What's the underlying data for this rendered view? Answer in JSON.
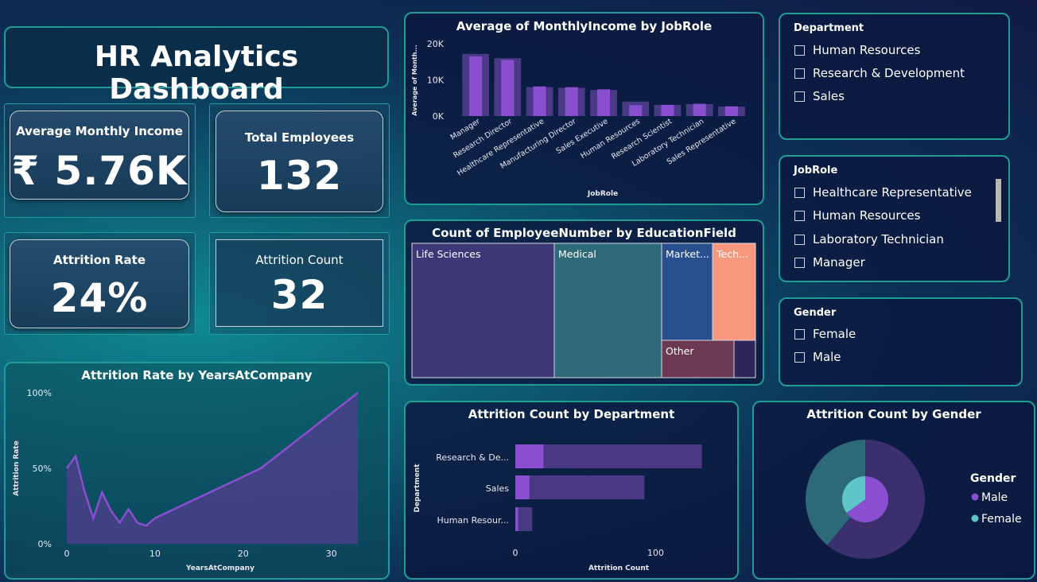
{
  "dashboard_title": "HR Analytics Dashboard",
  "kpis": {
    "avg_income": {
      "label": "Average Monthly Income",
      "value": "₹ 5.76K"
    },
    "total_employees": {
      "label": "Total Employees",
      "value": "132"
    },
    "attrition_rate": {
      "label": "Attrition Rate",
      "value": "24%"
    },
    "attrition_count": {
      "label": "Attrition Count",
      "value": "32"
    }
  },
  "slicers": {
    "department": {
      "title": "Department",
      "options": [
        "Human Resources",
        "Research & Development",
        "Sales"
      ]
    },
    "jobrole": {
      "title": "JobRole",
      "options": [
        "Healthcare Representative",
        "Human Resources",
        "Laboratory Technician",
        "Manager"
      ]
    },
    "gender": {
      "title": "Gender",
      "options": [
        "Female",
        "Male"
      ]
    }
  },
  "colors": {
    "accent": "#8a4fd0",
    "bar_bg": "#4a3a86",
    "teal": "#2aa198",
    "female": "#5ec6c8",
    "male": "#8a4fd0"
  },
  "chart_data": [
    {
      "id": "income_by_role",
      "type": "bar",
      "title": "Average of MonthlyIncome by JobRole",
      "xlabel": "JobRole",
      "ylabel": "Average of Month...",
      "ylim": [
        0,
        20000
      ],
      "yticks": [
        "0K",
        "10K",
        "20K"
      ],
      "categories": [
        "Manager",
        "Research Director",
        "Healthcare Representative",
        "Manufacturing Director",
        "Sales Executive",
        "Human Resources",
        "Research Scientist",
        "Laboratory Technician",
        "Sales Representative"
      ],
      "series": [
        {
          "values": [
            17200,
            16000,
            8000,
            7800,
            7200,
            4000,
            3100,
            3300,
            2600
          ]
        },
        {
          "values": [
            16500,
            15500,
            8200,
            8000,
            7400,
            3000,
            3100,
            3400,
            2700
          ]
        }
      ]
    },
    {
      "id": "education_treemap",
      "type": "treemap",
      "title": "Count of EmployeeNumber by EducationField",
      "items": [
        {
          "label": "Life Sciences",
          "color": "#3e3778"
        },
        {
          "label": "Medical",
          "color": "#2e6a78"
        },
        {
          "label": "Market...",
          "color": "#2a4f8e"
        },
        {
          "label": "Tech...",
          "color": "#f7977c"
        },
        {
          "label": "Other",
          "color": "#6b3a52"
        },
        {
          "label": "",
          "color": "#2e2558"
        }
      ]
    },
    {
      "id": "attrition_by_years",
      "type": "area",
      "title": "Attrition Rate by YearsAtCompany",
      "xlabel": "YearsAtCompany",
      "ylabel": "Attrition Rate",
      "xlim": [
        0,
        33
      ],
      "ylim": [
        0,
        100
      ],
      "xticks": [
        0,
        10,
        20,
        30
      ],
      "yticks": [
        "0%",
        "50%",
        "100%"
      ],
      "x": [
        0,
        1,
        2,
        3,
        4,
        5,
        6,
        7,
        8,
        9,
        10,
        22,
        33
      ],
      "y": [
        50,
        58,
        35,
        17,
        34,
        22,
        14,
        23,
        14,
        12,
        17,
        50,
        100
      ]
    },
    {
      "id": "attrition_by_department",
      "type": "bar",
      "orientation": "horizontal",
      "title": "Attrition Count by Department",
      "xlabel": "Attrition Count",
      "ylabel": "Department",
      "xlim": [
        0,
        140
      ],
      "xticks": [
        0,
        100
      ],
      "categories": [
        "Research & De...",
        "Sales",
        "Human Resour..."
      ],
      "series": [
        {
          "values": [
            133,
            92,
            12
          ]
        },
        {
          "values": [
            20,
            10,
            2
          ]
        }
      ]
    },
    {
      "id": "attrition_by_gender",
      "type": "pie",
      "title": "Attrition Count by Gender",
      "legend_title": "Gender",
      "legend": "right",
      "outer": [
        {
          "label": "Male",
          "value": 61,
          "color": "#3b2f70"
        },
        {
          "label": "Female",
          "value": 39,
          "color": "#2c6a78"
        }
      ],
      "inner": [
        {
          "label": "Male",
          "value": 65,
          "color": "#8a4fd0"
        },
        {
          "label": "Female",
          "value": 35,
          "color": "#5ec6c8"
        }
      ]
    }
  ]
}
